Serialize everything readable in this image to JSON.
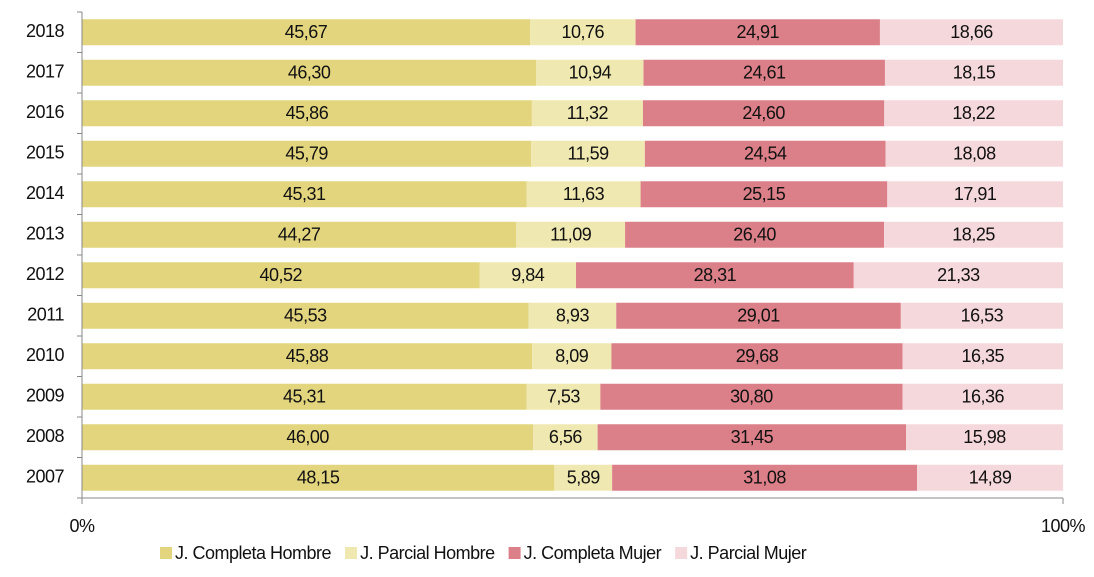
{
  "chart_data": {
    "type": "stacked_bar_horizontal",
    "categories": [
      "2018",
      "2017",
      "2016",
      "2015",
      "2014",
      "2013",
      "2012",
      "2011",
      "2010",
      "2009",
      "2008",
      "2007"
    ],
    "series": [
      {
        "name": "J. Completa Hombre",
        "color": "#e3d57e",
        "values": [
          45.67,
          46.3,
          45.86,
          45.79,
          45.31,
          44.27,
          40.52,
          45.53,
          45.88,
          45.31,
          46.0,
          48.15
        ],
        "value_labels": [
          "45,67",
          "46,30",
          "45,86",
          "45,79",
          "45,31",
          "44,27",
          "40,52",
          "45,53",
          "45,88",
          "45,31",
          "46,00",
          "48,15"
        ]
      },
      {
        "name": "J. Parcial Hombre",
        "color": "#efe8b0",
        "values": [
          10.76,
          10.94,
          11.32,
          11.59,
          11.63,
          11.09,
          9.84,
          8.93,
          8.09,
          7.53,
          6.56,
          5.89
        ],
        "value_labels": [
          "10,76",
          "10,94",
          "11,32",
          "11,59",
          "11,63",
          "11,09",
          "9,84",
          "8,93",
          "8,09",
          "7,53",
          "6,56",
          "5,89"
        ]
      },
      {
        "name": "J. Completa Mujer",
        "color": "#db7f88",
        "values": [
          24.91,
          24.61,
          24.6,
          24.54,
          25.15,
          26.4,
          28.31,
          29.01,
          29.68,
          30.8,
          31.45,
          31.08
        ],
        "value_labels": [
          "24,91",
          "24,61",
          "24,60",
          "24,54",
          "25,15",
          "26,40",
          "28,31",
          "29,01",
          "29,68",
          "30,80",
          "31,45",
          "31,08"
        ]
      },
      {
        "name": "J. Parcial Mujer",
        "color": "#f5d8dc",
        "values": [
          18.66,
          18.15,
          18.22,
          18.08,
          17.91,
          18.25,
          21.33,
          16.53,
          16.35,
          16.36,
          15.98,
          14.89
        ],
        "value_labels": [
          "18,66",
          "18,15",
          "18,22",
          "18,08",
          "17,91",
          "18,25",
          "21,33",
          "16,53",
          "16,35",
          "16,36",
          "15,98",
          "14,89"
        ]
      }
    ],
    "xlim": [
      0,
      100
    ],
    "xticks": [
      {
        "value": 0,
        "label": "0%"
      },
      {
        "value": 100,
        "label": "100%"
      }
    ],
    "legend": "bottom"
  }
}
